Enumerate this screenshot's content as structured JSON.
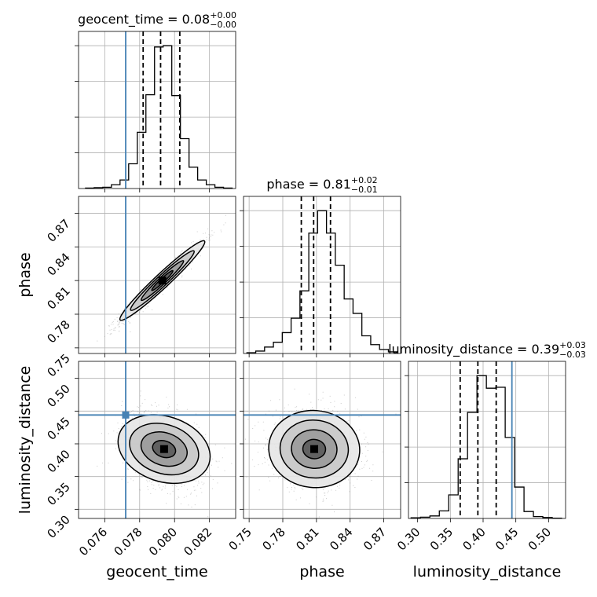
{
  "colors": {
    "truth": "#4682b4",
    "hist": "#000000",
    "grid": "#b0b0b0",
    "points": "#8c8c8c"
  },
  "chart_data": {
    "type": "corner",
    "parameters": [
      {
        "name": "geocent_time",
        "xlabel": "geocent_time",
        "title": {
          "prefix": "geocent_time = 0.08",
          "plus": "+0.00",
          "minus": "−0.00"
        },
        "range": [
          0.0745,
          0.0835
        ],
        "ticks": [
          0.076,
          0.078,
          0.08,
          0.082
        ],
        "tick_labels": [
          "0.076",
          "0.078",
          "0.080",
          "0.082"
        ],
        "truth": 0.0772,
        "quantiles": [
          0.0782,
          0.0792,
          0.0803
        ],
        "hist_edges": [
          0.0749,
          0.0833
        ],
        "hist_counts": [
          1,
          2,
          3,
          9,
          20,
          58,
          132,
          220,
          332,
          335,
          218,
          117,
          50,
          20,
          9,
          3,
          1
        ]
      },
      {
        "name": "phase",
        "ylabel": "phase",
        "xlabel": "phase",
        "title": {
          "prefix": "phase = 0.81",
          "plus": "+0.02",
          "minus": "−0.01"
        },
        "range": [
          0.745,
          0.885
        ],
        "ticks": [
          0.75,
          0.78,
          0.81,
          0.84,
          0.87
        ],
        "tick_labels": [
          "0.75",
          "0.78",
          "0.81",
          "0.84",
          "0.87"
        ],
        "quantiles": [
          0.7965,
          0.8075,
          0.8225
        ],
        "hist_edges": [
          0.748,
          0.882
        ],
        "hist_counts": [
          1,
          3,
          8,
          14,
          26,
          44,
          78,
          150,
          178,
          150,
          110,
          68,
          50,
          22,
          11,
          5,
          2
        ]
      },
      {
        "name": "luminosity_distance",
        "ylabel": "luminosity_distance",
        "xlabel": "luminosity_distance",
        "title": {
          "prefix": "luminosity_distance = 0.39",
          "plus": "+0.03",
          "minus": "−0.03"
        },
        "range": [
          0.286,
          0.526
        ],
        "ticks": [
          0.3,
          0.35,
          0.4,
          0.45,
          0.5
        ],
        "tick_labels": [
          "0.30",
          "0.35",
          "0.40",
          "0.45",
          "0.50"
        ],
        "truth": 0.444,
        "quantiles": [
          0.365,
          0.392,
          0.42
        ],
        "hist_edges": [
          0.29,
          0.52
        ],
        "hist_counts": [
          2,
          4,
          8,
          24,
          75,
          190,
          338,
          455,
          415,
          418,
          258,
          100,
          22,
          6,
          3,
          1
        ]
      }
    ],
    "scatter_panels": [
      {
        "x": "geocent_time",
        "y": "phase",
        "truth_x": 0.0772,
        "center": [
          0.0793,
          0.81
        ],
        "spread": [
          0.0012,
          0.018
        ],
        "correlation": 0.97
      },
      {
        "x": "geocent_time",
        "y": "luminosity_distance",
        "truth_x": 0.0772,
        "truth_y": 0.444,
        "center": [
          0.0794,
          0.392
        ],
        "spread": [
          0.0012,
          0.03
        ],
        "correlation": -0.35
      },
      {
        "x": "phase",
        "y": "luminosity_distance",
        "truth_y": 0.444,
        "center": [
          0.808,
          0.392
        ],
        "spread": [
          0.02,
          0.03
        ],
        "correlation": -0.1
      }
    ]
  }
}
